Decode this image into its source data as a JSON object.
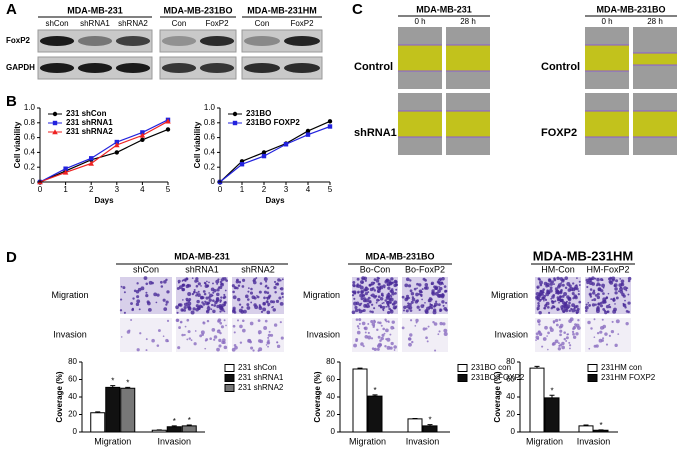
{
  "panel_a": {
    "label": "A",
    "groups": [
      {
        "title": "MDA-MB-231",
        "lanes": [
          "shCon",
          "shRNA1",
          "shRNA2"
        ]
      },
      {
        "title": "MDA-MB-231BO",
        "lanes": [
          "Con",
          "FoxP2"
        ]
      },
      {
        "title": "MDA-MB-231HM",
        "lanes": [
          "Con",
          "FoxP2"
        ]
      }
    ],
    "rows": [
      "FoxP2",
      "GAPDH"
    ]
  },
  "panel_b": {
    "label": "B"
  },
  "panel_c": {
    "label": "C",
    "groups": [
      {
        "title": "MDA-MB-231",
        "times": [
          "0 h",
          "28 h"
        ],
        "rows": [
          "Control",
          "shRNA1"
        ]
      },
      {
        "title": "MDA-MB-231BO",
        "times": [
          "0 h",
          "28 h"
        ],
        "rows": [
          "Control",
          "FOXP2"
        ]
      }
    ]
  },
  "panel_d": {
    "label": "D",
    "groups": [
      {
        "title": "MDA-MB-231",
        "columns": [
          "shCon",
          "shRNA1",
          "shRNA2"
        ],
        "rows": [
          "Migration",
          "Invasion"
        ]
      },
      {
        "title": "MDA-MB-231BO",
        "columns": [
          "Bo-Con",
          "Bo-FoxP2"
        ],
        "rows": [
          "Migration",
          "Invasion"
        ]
      },
      {
        "title": "MDA-MB-231HM",
        "columns": [
          "HM-Con",
          "HM-FoxP2"
        ],
        "rows": [
          "Migration",
          "Invasion"
        ]
      }
    ]
  },
  "chart_data": [
    {
      "type": "line",
      "x_label": "Days",
      "y_label": "Cell viability",
      "x": [
        0,
        1,
        2,
        3,
        4,
        5
      ],
      "xlim": [
        0,
        5
      ],
      "xticks": [
        0,
        1,
        2,
        3,
        4,
        5
      ],
      "ylim": [
        0,
        1
      ],
      "yticks": [
        0,
        0.2,
        0.4,
        0.6,
        0.8,
        {
          "value": 1,
          "label": "1.0"
        }
      ],
      "series": [
        {
          "name": "231 shCon",
          "color": "#000000",
          "marker": "circle",
          "values": [
            0,
            0.15,
            0.3,
            0.4,
            0.57,
            0.71
          ]
        },
        {
          "name": "231 shRNA1",
          "color": "#2222dd",
          "marker": "square",
          "values": [
            0,
            0.18,
            0.32,
            0.54,
            0.67,
            0.84
          ]
        },
        {
          "name": "231 shRNA2",
          "color": "#ee2222",
          "marker": "triangle",
          "values": [
            0,
            0.13,
            0.25,
            0.5,
            0.63,
            0.82
          ]
        }
      ]
    },
    {
      "type": "line",
      "x_label": "Days",
      "y_label": "Cell viability",
      "x": [
        0,
        1,
        2,
        3,
        4,
        5
      ],
      "xlim": [
        0,
        5
      ],
      "xticks": [
        0,
        1,
        2,
        3,
        4,
        5
      ],
      "ylim": [
        0,
        1
      ],
      "yticks": [
        0,
        0.2,
        0.4,
        0.6,
        0.8,
        {
          "value": 1,
          "label": "1.0"
        }
      ],
      "series": [
        {
          "name": "231BO",
          "color": "#000000",
          "marker": "circle",
          "values": [
            0,
            0.28,
            0.4,
            0.52,
            0.69,
            0.82
          ]
        },
        {
          "name": "231BO FOXP2",
          "color": "#2222dd",
          "marker": "square",
          "values": [
            0,
            0.24,
            0.35,
            0.51,
            0.64,
            0.75
          ]
        }
      ]
    },
    {
      "type": "bar",
      "y_label": "Coverage (%)",
      "categories": [
        "Migration",
        "Invasion"
      ],
      "ylim": [
        0,
        80
      ],
      "yticks": [
        0,
        20,
        40,
        60,
        80
      ],
      "series": [
        {
          "name": "231 shCon",
          "color": "#ffffff",
          "values": [
            22,
            2
          ],
          "errors": [
            1,
            0.5
          ]
        },
        {
          "name": "231 shRNA1",
          "color": "#111111",
          "values": [
            51,
            6
          ],
          "errors": [
            2,
            1
          ]
        },
        {
          "name": "231 shRNA2",
          "color": "#777777",
          "values": [
            50,
            7
          ],
          "errors": [
            1,
            1
          ]
        }
      ],
      "annotations": [
        {
          "text": "*",
          "series": 1,
          "category": 0
        },
        {
          "text": "*",
          "series": 2,
          "category": 0
        },
        {
          "text": "*",
          "series": 1,
          "category": 1
        },
        {
          "text": "*",
          "series": 2,
          "category": 1
        }
      ]
    },
    {
      "type": "bar",
      "y_label": "Coverage (%)",
      "categories": [
        "Migration",
        "Invasion"
      ],
      "ylim": [
        0,
        80
      ],
      "yticks": [
        0,
        20,
        40,
        60,
        80
      ],
      "series": [
        {
          "name": "231BO con",
          "color": "#ffffff",
          "values": [
            72,
            15
          ],
          "errors": [
            1,
            0.5
          ]
        },
        {
          "name": "231BO FOXP2",
          "color": "#111111",
          "values": [
            41,
            7
          ],
          "errors": [
            1.5,
            1.5
          ]
        }
      ],
      "annotations": [
        {
          "text": "*",
          "series": 1,
          "category": 0
        },
        {
          "text": "*",
          "series": 1,
          "category": 1
        }
      ]
    },
    {
      "type": "bar",
      "y_label": "Coverage (%)",
      "categories": [
        "Migration",
        "Invasion"
      ],
      "ylim": [
        0,
        80
      ],
      "yticks": [
        0,
        20,
        40,
        60,
        80
      ],
      "series": [
        {
          "name": "231HM con",
          "color": "#ffffff",
          "values": [
            73,
            7
          ],
          "errors": [
            2,
            1
          ]
        },
        {
          "name": "231HM FOXP2",
          "color": "#111111",
          "values": [
            39,
            2
          ],
          "errors": [
            3,
            0.5
          ]
        }
      ],
      "annotations": [
        {
          "text": "*",
          "series": 1,
          "category": 0
        },
        {
          "text": "*",
          "series": 1,
          "category": 1
        }
      ]
    }
  ]
}
